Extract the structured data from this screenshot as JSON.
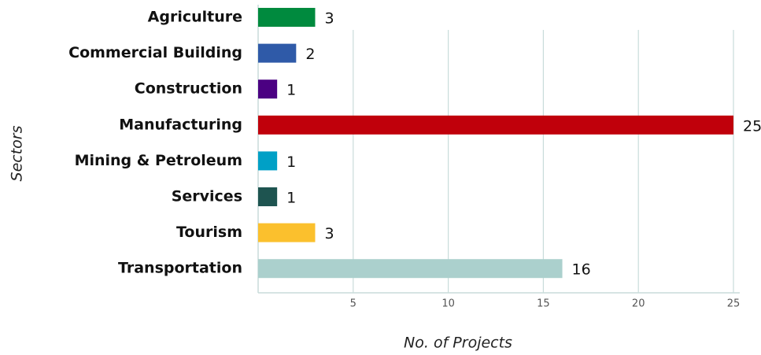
{
  "chart_data": {
    "type": "hbar",
    "categories": [
      "Agriculture",
      "Commercial Building",
      "Construction",
      "Manufacturing",
      "Mining & Petroleum",
      "Services",
      "Tourism",
      "Transportation"
    ],
    "values": [
      3,
      2,
      1,
      25,
      1,
      1,
      3,
      16
    ],
    "colors": [
      "#008a3e",
      "#2f5aa8",
      "#4b0082",
      "#c0000b",
      "#00a0c6",
      "#1e5450",
      "#fbc02d",
      "#abd0cd"
    ],
    "xlim": [
      0,
      25
    ],
    "xticks": [
      5,
      10,
      15,
      20,
      25
    ],
    "grid": true,
    "xlabel": "No. of Projects",
    "ylabel": "Sectors"
  }
}
